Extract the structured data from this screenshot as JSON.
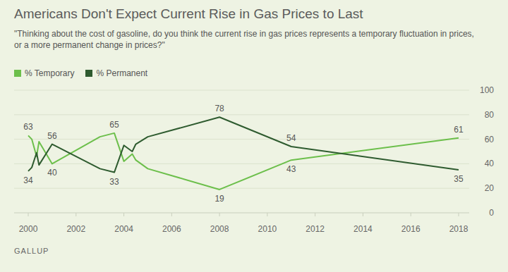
{
  "chart_data": {
    "type": "line",
    "title": "Americans Don't Expect Current Rise in Gas Prices to Last",
    "subtitle": "\"Thinking about the cost of gasoline, do you think the current rise in gas prices represents a temporary fluctuation in prices, or a more permanent change in prices?\"",
    "source": "GALLUP",
    "x": [
      2000.0,
      2000.15,
      2000.35,
      2000.45,
      2001.0,
      2003.0,
      2003.6,
      2004.0,
      2004.35,
      2004.5,
      2005.0,
      2008.0,
      2011.0,
      2018.0
    ],
    "series": [
      {
        "name": "% Temporary",
        "color": "#6cbf4b",
        "values": [
          63,
          60,
          46,
          58,
          40,
          62,
          65,
          42,
          48,
          43,
          36,
          19,
          43,
          61
        ],
        "value_labels": [
          "63",
          null,
          null,
          null,
          "40",
          null,
          "65",
          null,
          null,
          null,
          null,
          "19",
          "43",
          "61"
        ]
      },
      {
        "name": "% Permanent",
        "color": "#2e5b2f",
        "values": [
          34,
          37,
          49,
          39,
          56,
          36,
          33,
          55,
          50,
          56,
          62,
          78,
          54,
          35
        ],
        "value_labels": [
          "34",
          null,
          null,
          null,
          "56",
          null,
          "33",
          null,
          null,
          null,
          null,
          "78",
          "54",
          "35"
        ]
      }
    ],
    "xlim": [
      2000,
      2018
    ],
    "xticks": [
      2000,
      2002,
      2004,
      2006,
      2008,
      2010,
      2012,
      2014,
      2016,
      2018
    ],
    "ylim": [
      0,
      100
    ],
    "yticks": [
      0,
      20,
      40,
      60,
      80,
      100
    ],
    "grid": true,
    "legend": "top-left",
    "data_labels": true
  }
}
